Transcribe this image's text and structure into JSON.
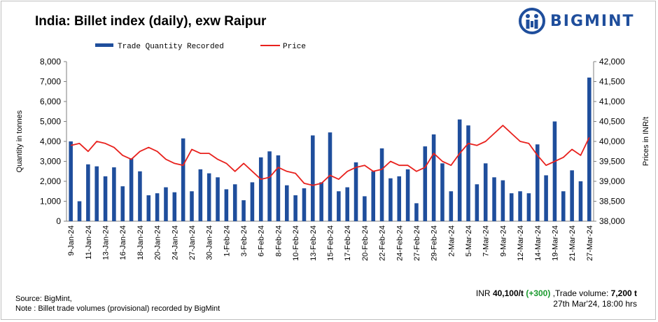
{
  "title": "India: Billet index (daily), exw Raipur",
  "brand": "BIGMINT",
  "footer": {
    "source": "Source: BigMint,",
    "note": "Note : Billet trade volumes (provisional) recorded by BigMint",
    "price_prefix": "INR",
    "price_value": "40,100/t",
    "price_change": "(+300)",
    "volume_label": ",Trade volume:",
    "volume_value": "7,200 t",
    "timestamp": "27th Mar'24, 18:00 hrs"
  },
  "colors": {
    "bar": "#1f4e9c",
    "line": "#e8211d",
    "brand": "#1f4e9c",
    "change": "#1a9a2e"
  },
  "chart_data": {
    "type": "bar",
    "ylabel": "Quantity in tonnes",
    "y2label": "Prices in INR/t",
    "ylim": [
      0,
      8000
    ],
    "y2lim": [
      38000,
      42000
    ],
    "y_ticks": [
      "0",
      "1,000",
      "2,000",
      "3,000",
      "4,000",
      "5,000",
      "6,000",
      "7,000",
      "8,000"
    ],
    "y2_ticks": [
      "38,000",
      "38,500",
      "39,000",
      "39,500",
      "40,000",
      "40,500",
      "41,000",
      "41,500",
      "42,000"
    ],
    "legend": {
      "placement": "top",
      "bar_label": "Trade Quantity Recorded",
      "line_label": "Price"
    },
    "x_labels": [
      "9-Jan-24",
      "11-Jan-24",
      "13-Jan-24",
      "16-Jan-24",
      "18-Jan-24",
      "20-Jan-24",
      "24-Jan-24",
      "27-Jan-24",
      "30-Jan-24",
      "1-Feb-24",
      "3-Feb-24",
      "6-Feb-24",
      "8-Feb-24",
      "10-Feb-24",
      "13-Feb-24",
      "15-Feb-24",
      "17-Feb-24",
      "20-Feb-24",
      "22-Feb-24",
      "24-Feb-24",
      "27-Feb-24",
      "29-Feb-24",
      "2-Mar-24",
      "5-Mar-24",
      "7-Mar-24",
      "9-Mar-24",
      "12-Mar-24",
      "14-Mar-24",
      "19-Mar-24",
      "21-Mar-24",
      "27-Mar-24"
    ],
    "series": [
      {
        "name": "Trade Quantity Recorded",
        "type": "bar",
        "values": [
          4000,
          1000,
          2850,
          2750,
          2250,
          2700,
          1750,
          3150,
          2500,
          1300,
          1400,
          1700,
          1450,
          4150,
          1500,
          2600,
          2400,
          2200,
          1600,
          1850,
          1050,
          1950,
          3200,
          3500,
          3300,
          1800,
          1300,
          1650,
          4300,
          1950,
          4450,
          1500,
          1700,
          2950,
          1250,
          2500,
          3650,
          2150,
          2250,
          2600,
          900,
          3750,
          4350,
          2900,
          1500,
          5100,
          4800,
          1850,
          2900,
          2200,
          2050,
          1400,
          1500,
          1400,
          3850,
          2300,
          5000,
          1500,
          2550,
          2000,
          7200
        ]
      },
      {
        "name": "Price",
        "type": "line",
        "values": [
          39900,
          39950,
          39750,
          40000,
          39950,
          39850,
          39650,
          39550,
          39750,
          39850,
          39750,
          39550,
          39450,
          39400,
          39800,
          39700,
          39700,
          39550,
          39450,
          39250,
          39450,
          39250,
          39050,
          39100,
          39350,
          39250,
          39200,
          38950,
          38900,
          38950,
          39150,
          39050,
          39250,
          39350,
          39400,
          39250,
          39300,
          39500,
          39400,
          39400,
          39250,
          39350,
          39700,
          39500,
          39400,
          39700,
          39950,
          39900,
          40000,
          40200,
          40400,
          40200,
          40000,
          39950,
          39650,
          39400,
          39500,
          39600,
          39800,
          39650,
          40100
        ]
      }
    ]
  }
}
